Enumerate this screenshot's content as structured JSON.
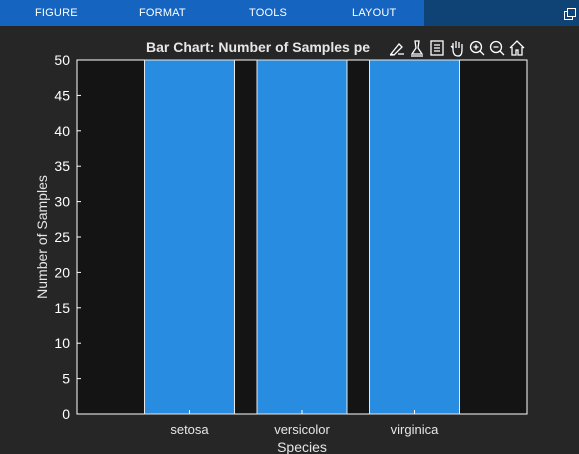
{
  "tabs": [
    {
      "label": "FIGURE"
    },
    {
      "label": "FORMAT"
    },
    {
      "label": "TOOLS"
    },
    {
      "label": "LAYOUT"
    }
  ],
  "toolbar_icons": [
    "brush-icon",
    "data-cursor-icon",
    "legend-icon",
    "pan-icon",
    "zoom-in-icon",
    "zoom-out-icon",
    "home-icon"
  ],
  "colors": {
    "tabbar": "#1565c0",
    "background": "#262626",
    "axes_bg": "#141414",
    "bar": "#288ce0",
    "text": "#ffffff"
  },
  "chart_data": {
    "type": "bar",
    "title": "Bar Chart: Number of Samples pe",
    "xlabel": "Species",
    "ylabel": "Number of Samples",
    "categories": [
      "setosa",
      "versicolor",
      "virginica"
    ],
    "values": [
      50,
      50,
      50
    ],
    "ylim": [
      0,
      50
    ],
    "xlim": [
      0,
      4
    ],
    "yticks": [
      0,
      5,
      10,
      15,
      20,
      25,
      30,
      35,
      40,
      45,
      50
    ],
    "grid": false
  }
}
